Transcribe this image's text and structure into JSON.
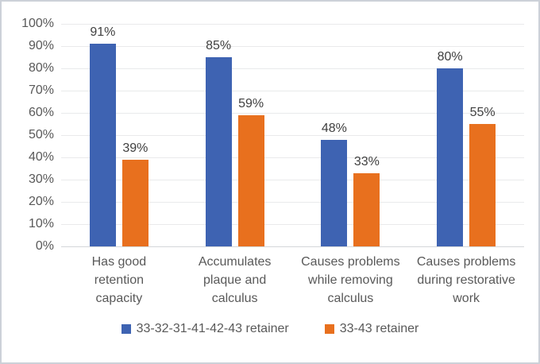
{
  "figure": {
    "background": "#ffffff",
    "border_color": "#ccd1d8"
  },
  "chart_data": {
    "type": "bar",
    "title": "",
    "categories": [
      "Has good\nretention\ncapacity",
      "Accumulates\nplaque and\ncalculus",
      "Causes problems\nwhile removing\ncalculus",
      "Causes problems\nduring restorative\nwork"
    ],
    "series": [
      {
        "name": "33-32-31-41-42-43 retainer",
        "color": "#3E63B2",
        "values": [
          91,
          85,
          48,
          80
        ]
      },
      {
        "name": "33-43 retainer",
        "color": "#E8701E",
        "values": [
          39,
          59,
          33,
          55
        ]
      }
    ],
    "value_suffix": "%",
    "data_labels": [
      "91%",
      "39%",
      "85%",
      "59%",
      "48%",
      "33%",
      "80%",
      "55%"
    ],
    "y_axis": {
      "min": 0,
      "max": 100,
      "step": 10,
      "tick_labels": [
        "0%",
        "10%",
        "20%",
        "30%",
        "40%",
        "50%",
        "60%",
        "70%",
        "80%",
        "90%",
        "100%"
      ]
    },
    "xlabel": "",
    "ylabel": "",
    "grid": true,
    "legend_position": "bottom"
  },
  "styles": {
    "grid_color": "#e9eaeb",
    "axis_line_color": "#d4d6d9",
    "tick_text_color": "#595959",
    "category_text_color": "#595959",
    "data_label_color": "#404040",
    "legend_text_color": "#595959",
    "series1_color": "#3E63B2",
    "series2_color": "#E8701E"
  }
}
